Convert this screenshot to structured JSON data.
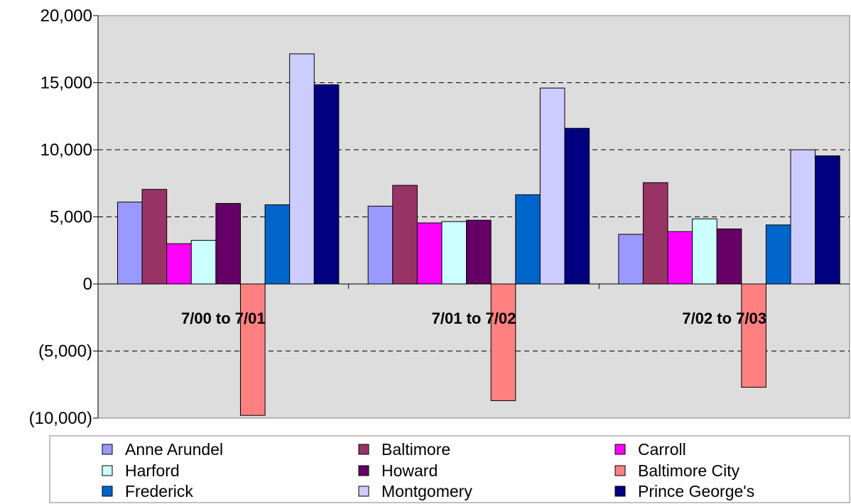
{
  "chart_data": {
    "type": "bar",
    "categories": [
      "7/00 to 7/01",
      "7/01 to 7/02",
      "7/02 to 7/03"
    ],
    "series": [
      {
        "name": "Anne Arundel",
        "color": "#9999ff",
        "values": [
          6100,
          5800,
          3700
        ]
      },
      {
        "name": "Baltimore",
        "color": "#993366",
        "values": [
          7050,
          7350,
          7550
        ]
      },
      {
        "name": "Carroll",
        "color": "#ff00ff",
        "values": [
          3000,
          4550,
          3900
        ]
      },
      {
        "name": "Harford",
        "color": "#ccffff",
        "values": [
          3250,
          4650,
          4850
        ]
      },
      {
        "name": "Howard",
        "color": "#660066",
        "values": [
          6000,
          4750,
          4100
        ]
      },
      {
        "name": "Baltimore City",
        "color": "#ff8080",
        "values": [
          -9800,
          -8700,
          -7700
        ]
      },
      {
        "name": "Frederick",
        "color": "#0066cc",
        "values": [
          5900,
          6650,
          4400
        ]
      },
      {
        "name": "Montgomery",
        "color": "#ccccff",
        "values": [
          17150,
          14600,
          10000
        ]
      },
      {
        "name": "Prince George's",
        "color": "#000080",
        "values": [
          14850,
          11600,
          9550
        ]
      }
    ],
    "y_tick_labels": [
      "20,000",
      "15,000",
      "10,000",
      "5,000",
      "0",
      "(5,000)",
      "(10,000)"
    ],
    "ylim": [
      -10000,
      20000
    ],
    "grid": true,
    "legend_position": "bottom"
  }
}
